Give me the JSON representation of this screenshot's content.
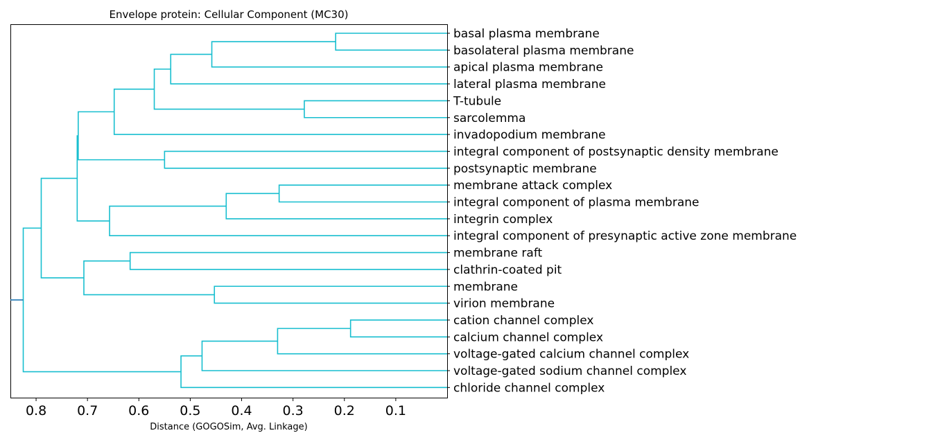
{
  "chart_data": {
    "type": "dendrogram",
    "title": "Envelope protein: Cellular Component (MC30)",
    "xlabel": "Distance (GOGOSim, Avg. Linkage)",
    "xlim": [
      0.85,
      0.0
    ],
    "xticks": [
      0.8,
      0.7,
      0.6,
      0.5,
      0.4,
      0.3,
      0.2,
      0.1
    ],
    "xtick_labels": [
      "0.8",
      "0.7",
      "0.6",
      "0.5",
      "0.4",
      "0.3",
      "0.2",
      "0.1"
    ],
    "link_color": "#17becf",
    "root_color": "#1f77b4",
    "highlight_color": "#ff0000",
    "highlight_leaf": "virion membrane",
    "leaves": [
      "basal plasma membrane",
      "basolateral plasma membrane",
      "apical plasma membrane",
      "lateral plasma membrane",
      "T-tubule",
      "sarcolemma",
      "invadopodium membrane",
      "integral component of postsynaptic density membrane",
      "postsynaptic membrane",
      "membrane attack complex",
      "integral component of plasma membrane",
      "integrin complex",
      "integral component of presynaptic active zone membrane",
      "membrane raft",
      "clathrin-coated pit",
      "membrane",
      "virion membrane",
      "cation channel complex",
      "calcium channel complex",
      "voltage-gated calcium channel complex",
      "voltage-gated sodium channel complex",
      "chloride channel complex"
    ],
    "merges": [
      {
        "id": "n1",
        "left": "leaf:0",
        "right": "leaf:1",
        "height": 0.217
      },
      {
        "id": "n2",
        "left": "n1",
        "right": "leaf:2",
        "height": 0.458
      },
      {
        "id": "n3",
        "left": "n2",
        "right": "leaf:3",
        "height": 0.538
      },
      {
        "id": "n4",
        "left": "leaf:4",
        "right": "leaf:5",
        "height": 0.278
      },
      {
        "id": "n5",
        "left": "n3",
        "right": "n4",
        "height": 0.57
      },
      {
        "id": "n6",
        "left": "n5",
        "right": "leaf:6",
        "height": 0.648
      },
      {
        "id": "n7",
        "left": "leaf:7",
        "right": "leaf:8",
        "height": 0.55
      },
      {
        "id": "n8",
        "left": "n6",
        "right": "n7",
        "height": 0.718
      },
      {
        "id": "n9",
        "left": "leaf:9",
        "right": "leaf:10",
        "height": 0.327
      },
      {
        "id": "n10",
        "left": "n9",
        "right": "leaf:11",
        "height": 0.43
      },
      {
        "id": "n11",
        "left": "n10",
        "right": "leaf:12",
        "height": 0.657
      },
      {
        "id": "n12",
        "left": "n8",
        "right": "n11",
        "height": 0.72
      },
      {
        "id": "n13",
        "left": "leaf:13",
        "right": "leaf:14",
        "height": 0.617
      },
      {
        "id": "n14",
        "left": "leaf:15",
        "right": "leaf:16",
        "height": 0.453
      },
      {
        "id": "n15",
        "left": "n13",
        "right": "n14",
        "height": 0.707
      },
      {
        "id": "n16",
        "left": "n12",
        "right": "n15",
        "height": 0.79
      },
      {
        "id": "n17",
        "left": "leaf:17",
        "right": "leaf:18",
        "height": 0.188
      },
      {
        "id": "n18",
        "left": "n17",
        "right": "leaf:19",
        "height": 0.33
      },
      {
        "id": "n19",
        "left": "n18",
        "right": "leaf:20",
        "height": 0.477
      },
      {
        "id": "n20",
        "left": "n19",
        "right": "leaf:21",
        "height": 0.518
      },
      {
        "id": "n21",
        "left": "n16",
        "right": "n20",
        "height": 0.825
      }
    ],
    "root_stub_height": 0.85
  }
}
